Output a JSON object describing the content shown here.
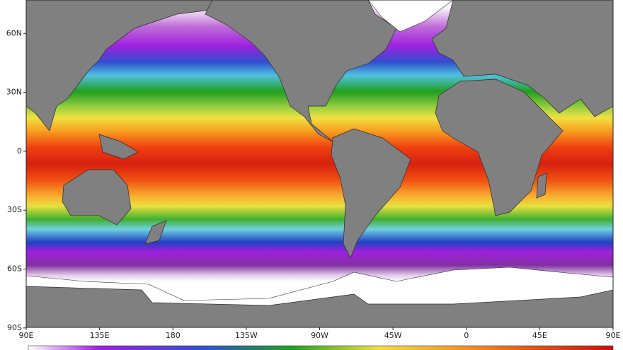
{
  "map": {
    "lat_labels": [
      "60N",
      "30N",
      "0",
      "30S",
      "60S",
      "90S"
    ],
    "lon_labels": [
      "90E",
      "135E",
      "180",
      "135W",
      "90W",
      "45W",
      "0",
      "45E",
      "90E"
    ]
  }
}
